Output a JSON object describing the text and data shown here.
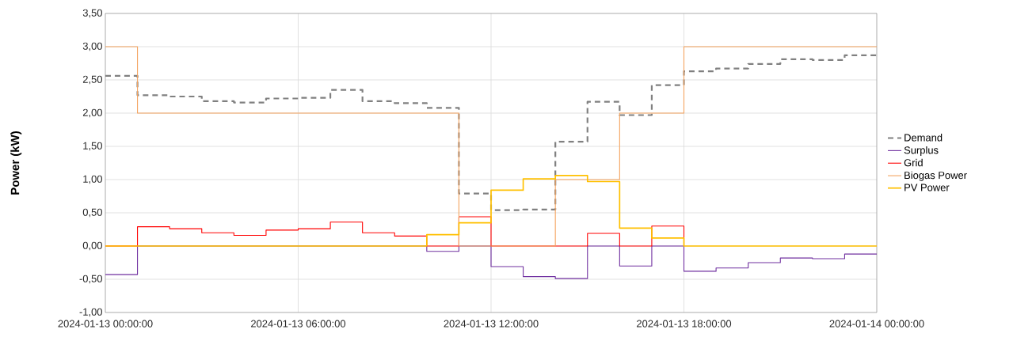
{
  "chart_data": {
    "type": "step",
    "ylabel": "Power (kW)",
    "x": [
      "2024-01-13T00:00",
      "2024-01-13T01:00",
      "2024-01-13T02:00",
      "2024-01-13T03:00",
      "2024-01-13T04:00",
      "2024-01-13T05:00",
      "2024-01-13T06:00",
      "2024-01-13T07:00",
      "2024-01-13T08:00",
      "2024-01-13T09:00",
      "2024-01-13T10:00",
      "2024-01-13T11:00",
      "2024-01-13T12:00",
      "2024-01-13T13:00",
      "2024-01-13T14:00",
      "2024-01-13T15:00",
      "2024-01-13T16:00",
      "2024-01-13T17:00",
      "2024-01-13T18:00",
      "2024-01-13T19:00",
      "2024-01-13T20:00",
      "2024-01-13T21:00",
      "2024-01-13T22:00",
      "2024-01-13T23:00",
      "2024-01-14T00:00"
    ],
    "xlim": [
      "2024-01-13T00:00",
      "2024-01-14T00:00"
    ],
    "xticks": [
      {
        "value": "2024-01-13T00:00",
        "label": "2024-01-13 00:00:00"
      },
      {
        "value": "2024-01-13T06:00",
        "label": "2024-01-13 06:00:00"
      },
      {
        "value": "2024-01-13T12:00",
        "label": "2024-01-13 12:00:00"
      },
      {
        "value": "2024-01-13T18:00",
        "label": "2024-01-13 18:00:00"
      },
      {
        "value": "2024-01-14T00:00",
        "label": "2024-01-14 00:00:00"
      }
    ],
    "ylim": [
      -1,
      3.5
    ],
    "yticks": [
      {
        "value": -1,
        "label": "-1,00"
      },
      {
        "value": -0.5,
        "label": "-0,50"
      },
      {
        "value": 0,
        "label": "0,00"
      },
      {
        "value": 0.5,
        "label": "0,50"
      },
      {
        "value": 1,
        "label": "1,00"
      },
      {
        "value": 1.5,
        "label": "1,50"
      },
      {
        "value": 2,
        "label": "2,00"
      },
      {
        "value": 2.5,
        "label": "2,50"
      },
      {
        "value": 3,
        "label": "3,00"
      },
      {
        "value": 3.5,
        "label": "3,50"
      }
    ],
    "grid": true,
    "legend": "right",
    "marker": "none",
    "series": [
      {
        "name": "Demand",
        "color": "#808080",
        "line_style": "dashed",
        "values": [
          2.56,
          2.27,
          2.25,
          2.18,
          2.16,
          2.22,
          2.23,
          2.35,
          2.18,
          2.15,
          2.08,
          0.79,
          0.54,
          0.55,
          1.57,
          2.17,
          1.97,
          2.42,
          2.63,
          2.67,
          2.74,
          2.81,
          2.8,
          2.87,
          2.87
        ]
      },
      {
        "name": "Surplus",
        "color": "#7030a0",
        "line_style": "solid",
        "values": [
          -0.43,
          0,
          0,
          0,
          0,
          0,
          0,
          0,
          0,
          0,
          -0.08,
          0,
          -0.31,
          -0.46,
          -0.49,
          0,
          -0.3,
          0,
          -0.38,
          -0.33,
          -0.25,
          -0.18,
          -0.19,
          -0.12,
          -0.12
        ]
      },
      {
        "name": "Grid",
        "color": "#ff0000",
        "line_style": "solid",
        "values": [
          0,
          0.29,
          0.26,
          0.2,
          0.16,
          0.24,
          0.26,
          0.36,
          0.2,
          0.15,
          0,
          0.44,
          0,
          0,
          0,
          0.19,
          0,
          0.3,
          0,
          null,
          null,
          null,
          null,
          null,
          null
        ]
      },
      {
        "name": "Biogas Power",
        "color": "#f4a460",
        "line_style": "solid",
        "values": [
          3,
          2,
          2,
          2,
          2,
          2,
          2,
          2,
          2,
          2,
          2,
          0,
          0,
          0,
          1,
          1,
          2,
          2,
          3,
          3,
          3,
          3,
          3,
          3,
          3
        ]
      },
      {
        "name": "PV Power",
        "color": "#ffc000",
        "line_style": "solid",
        "values": [
          0,
          0,
          0,
          0,
          0,
          0,
          0,
          0,
          0,
          0,
          0.17,
          0.35,
          0.84,
          1.01,
          1.06,
          0.97,
          0.27,
          0.12,
          0,
          0,
          0,
          0,
          0,
          0,
          0
        ]
      }
    ]
  }
}
